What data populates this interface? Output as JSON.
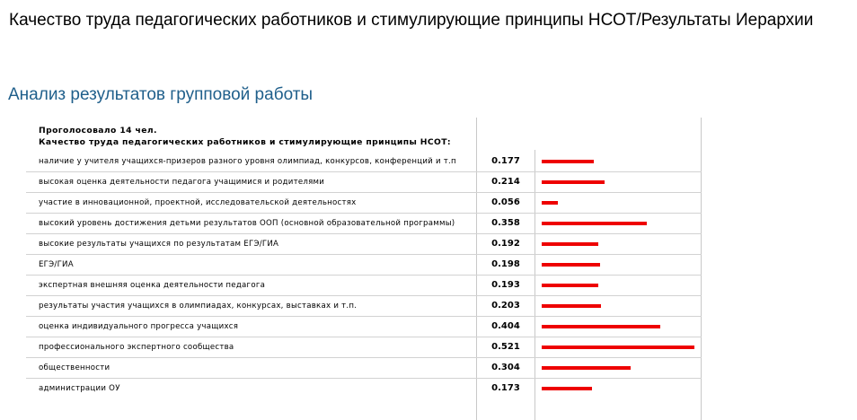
{
  "page": {
    "title": "Качество труда педагогических работников и стимулирующие принципы НСОТ/Результаты Иерархии",
    "section_title": "Анализ результатов групповой работы"
  },
  "table": {
    "voted": "Проголосовало 14 чел.",
    "question": "Качество труда педагогических работников и стимулирующие принципы НСОТ:"
  },
  "colors": {
    "bar": "#ee0000",
    "section_title": "#1f5f8b"
  },
  "chart_data": {
    "type": "bar",
    "orientation": "horizontal",
    "categories": [
      "наличие у учителя учащихся-призеров разного уровня олимпиад, конкурсов, конференций и т.п",
      "высокая оценка деятельности педагога учащимися и родителями",
      "участие в инновационной, проектной, исследовательской деятельностях",
      "высокий уровень достижения детьми результатов ООП (основной образовательной программы)",
      "высокие результаты учащихся по результатам ЕГЭ/ГИА",
      "ЕГЭ/ГИА",
      "экспертная внешняя оценка деятельности педагога",
      "результаты участия учащихся в олимпиадах, конкурсах, выставках и т.п.",
      "оценка индивидуального прогресса учащихся",
      "профессионального экспертного сообщества",
      "общественности",
      "администрации ОУ"
    ],
    "values": [
      0.177,
      0.214,
      0.056,
      0.358,
      0.192,
      0.198,
      0.193,
      0.203,
      0.404,
      0.521,
      0.304,
      0.173
    ],
    "value_labels": [
      "0.177",
      "0.214",
      "0.056",
      "0.358",
      "0.192",
      "0.198",
      "0.193",
      "0.203",
      "0.404",
      "0.521",
      "0.304",
      "0.173"
    ],
    "xlim": [
      0,
      0.521
    ],
    "grid": false
  }
}
